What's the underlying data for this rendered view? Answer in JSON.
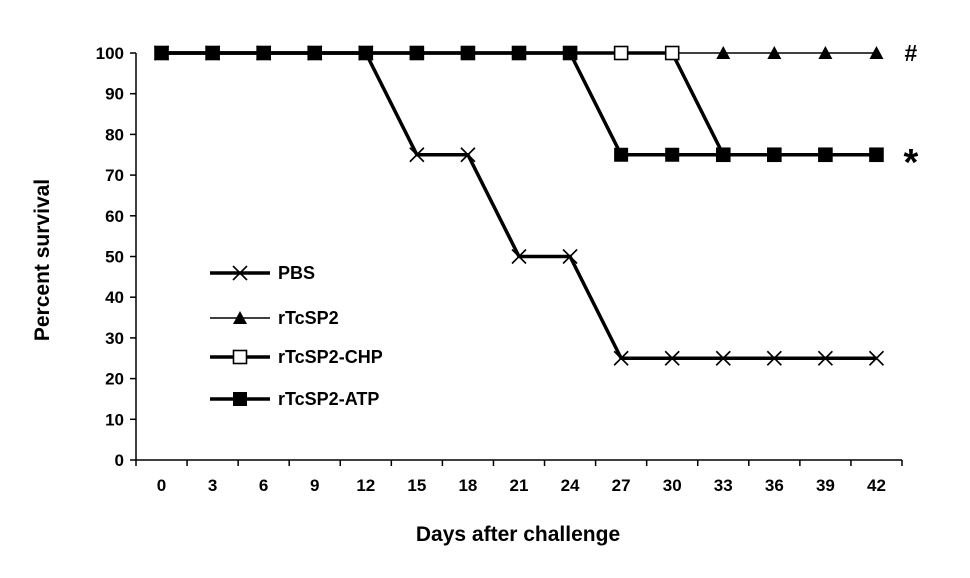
{
  "chart_data": {
    "type": "line",
    "xlabel": "Days after challenge",
    "ylabel": "Percent survival",
    "ylim": [
      0,
      100
    ],
    "yticks": [
      "0",
      "10",
      "20",
      "30",
      "40",
      "50",
      "60",
      "70",
      "80",
      "90",
      "100"
    ],
    "x": [
      0,
      3,
      6,
      9,
      12,
      15,
      18,
      21,
      24,
      27,
      30,
      33,
      36,
      39,
      42
    ],
    "categories": [
      "0",
      "3",
      "6",
      "9",
      "12",
      "15",
      "18",
      "21",
      "24",
      "27",
      "30",
      "33",
      "36",
      "39",
      "42"
    ],
    "grid": false,
    "legend_position": "left-middle",
    "series": [
      {
        "name": "PBS",
        "marker": "cross",
        "line": "thick",
        "values": [
          100,
          100,
          100,
          100,
          100,
          75,
          75,
          50,
          50,
          25,
          25,
          25,
          25,
          25,
          25
        ]
      },
      {
        "name": "rTcSP2",
        "marker": "filled-triangle",
        "line": "thin",
        "values": [
          100,
          100,
          100,
          100,
          100,
          100,
          100,
          100,
          100,
          100,
          100,
          100,
          100,
          100,
          100
        ]
      },
      {
        "name": "rTcSP2-CHP",
        "marker": "open-square",
        "line": "thick",
        "values": [
          100,
          100,
          100,
          100,
          100,
          100,
          100,
          100,
          100,
          100,
          100,
          75,
          75,
          75,
          75
        ]
      },
      {
        "name": "rTcSP2-ATP",
        "marker": "filled-square",
        "line": "thick",
        "values": [
          100,
          100,
          100,
          100,
          100,
          100,
          100,
          100,
          100,
          75,
          75,
          75,
          75,
          75,
          75
        ]
      }
    ],
    "annotations": [
      {
        "text": "#",
        "near": "rTcSP2 end"
      },
      {
        "text": "*",
        "near": "rTcSP2-ATP end"
      }
    ],
    "colors": {
      "line": "#000000",
      "background": "#ffffff"
    }
  }
}
